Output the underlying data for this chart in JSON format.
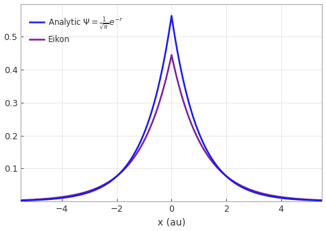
{
  "x_min": -5.5,
  "x_max": 5.5,
  "x_ticks": [
    -4,
    -2,
    0,
    2,
    4
  ],
  "y_min": 0.0,
  "y_max": 0.6,
  "y_ticks": [
    0.1,
    0.2,
    0.3,
    0.4,
    0.5
  ],
  "analytic_color": "#1a1aee",
  "eikon_color": "#7b1fa2",
  "analytic_label": "Analytic $\\Psi = \\frac{1}{\\sqrt{\\pi}}e^{-r}$",
  "eikon_label": "Eikon",
  "xlabel": "x (au)",
  "background_color": "#ffffff",
  "border_color": "#aaaaaa",
  "analytic_linewidth": 1.8,
  "eikon_linewidth": 1.8,
  "eikon_peak": 0.445,
  "eikon_decay": 0.88
}
